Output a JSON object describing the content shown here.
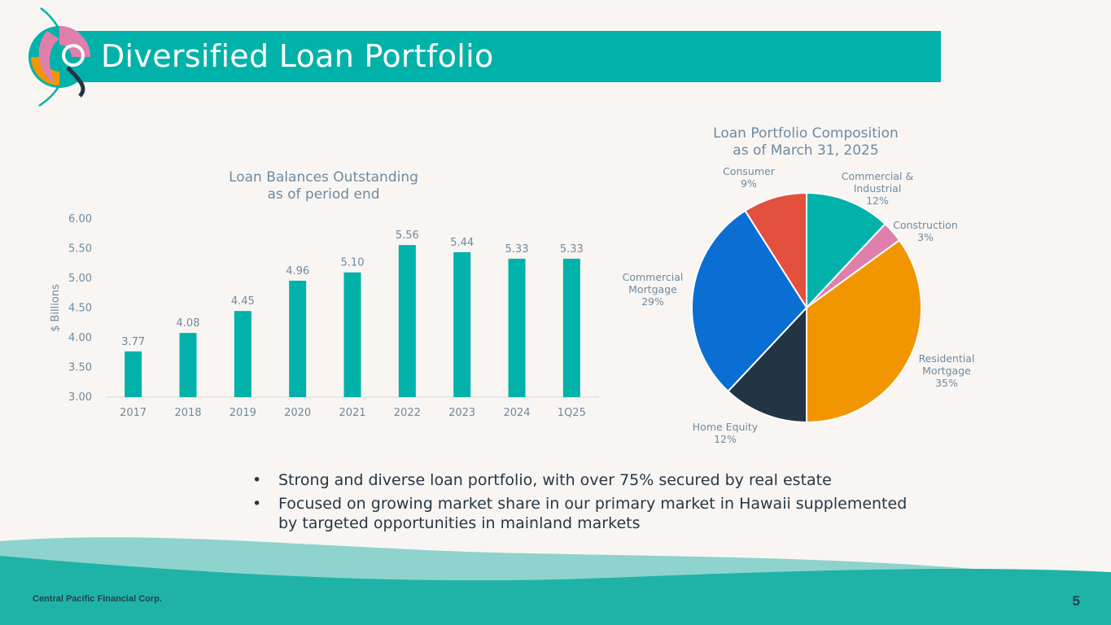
{
  "header": {
    "title": "Diversified Loan Portfolio"
  },
  "colors": {
    "teal": "#00b2a9",
    "text": "#273746",
    "muted": "#6d8ba3"
  },
  "bullets": [
    "Strong and diverse loan portfolio, with over 75% secured by real estate",
    "Focused on growing market share in our primary market in Hawaii supplemented by targeted opportunities in mainland markets"
  ],
  "footer": {
    "company": "Central Pacific Financial Corp.",
    "page": "5"
  },
  "chart_data": [
    {
      "type": "bar",
      "title": "Loan Balances Outstanding\nas of period end",
      "ylabel": "$ Billions",
      "categories": [
        "2017",
        "2018",
        "2019",
        "2020",
        "2021",
        "2022",
        "2023",
        "2024",
        "1Q25"
      ],
      "values": [
        3.77,
        4.08,
        4.45,
        4.96,
        5.1,
        5.56,
        5.44,
        5.33,
        5.33
      ],
      "value_labels": [
        "3.77",
        "4.08",
        "4.45",
        "4.96",
        "5.10",
        "5.56",
        "5.44",
        "5.33",
        "5.33"
      ],
      "ylim": [
        3.0,
        6.0
      ],
      "yticks": [
        "3.00",
        "3.50",
        "4.00",
        "4.50",
        "5.00",
        "5.50",
        "6.00"
      ],
      "color": "#00b2a9",
      "grid": false
    },
    {
      "type": "pie",
      "title": "Loan Portfolio Composition\nas of March 31, 2025",
      "slices": [
        {
          "label": "Commercial & Industrial",
          "pct": "12%",
          "value": 12,
          "color": "#00b2a9"
        },
        {
          "label": "Construction",
          "pct": "3%",
          "value": 3,
          "color": "#e07fab"
        },
        {
          "label": "Residential Mortgage",
          "pct": "35%",
          "value": 35,
          "color": "#f29600"
        },
        {
          "label": "Home Equity",
          "pct": "12%",
          "value": 12,
          "color": "#233443"
        },
        {
          "label": "Commercial Mortgage",
          "pct": "29%",
          "value": 29,
          "color": "#0a6ed3"
        },
        {
          "label": "Consumer",
          "pct": "9%",
          "value": 9,
          "color": "#e3503e"
        }
      ]
    }
  ]
}
